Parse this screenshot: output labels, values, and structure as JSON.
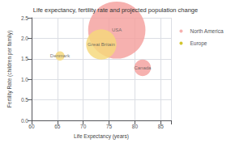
{
  "chart_data": {
    "type": "scatter",
    "title": "Life expectancy, fertility rate and projected population change",
    "xlabel": "Life Expectancy (years)",
    "ylabel": "Fertility Rate (children per family)",
    "xlim": [
      60,
      87
    ],
    "ylim": [
      0,
      2.5
    ],
    "xticks": [
      60,
      65,
      70,
      75,
      80,
      85
    ],
    "yticks": [
      {
        "value": 0,
        "label": "0.0"
      },
      0.5,
      {
        "value": 1.0,
        "label": "1.0"
      },
      1.5,
      {
        "value": 2.0,
        "label": "2.0"
      },
      2.5
    ],
    "grid": true,
    "legend": "right",
    "series": [
      {
        "name": "North America",
        "color": "#f4a09e",
        "x": [
          76.5,
          81.5
        ],
        "values": [
          2.2,
          1.28
        ],
        "sizes": [
          5000,
          420
        ],
        "labels": [
          "USA",
          "Canada"
        ],
        "colors": [
          "#f4a09e",
          "#f4a09e"
        ]
      },
      {
        "name": "Europe",
        "color": "#c8b800",
        "x": [
          73.5,
          65.5
        ],
        "values": [
          1.85,
          1.57
        ],
        "sizes": [
          1400,
          130
        ],
        "labels": [
          "Great Britain",
          "Denmark"
        ],
        "colors": [
          "#f5d87a",
          "#f5d87a"
        ]
      }
    ]
  }
}
